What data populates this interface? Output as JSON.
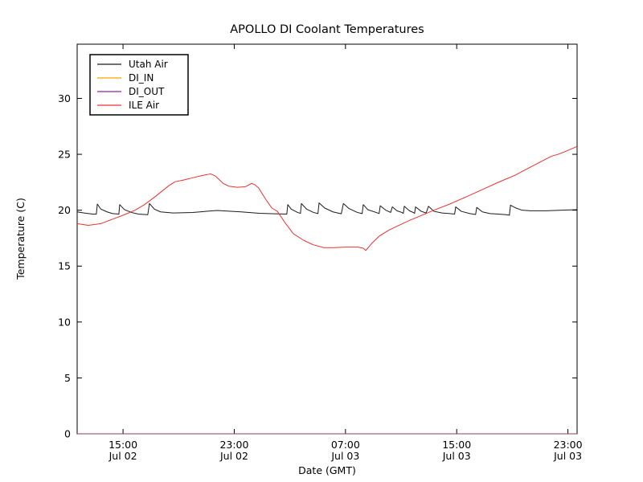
{
  "figure": {
    "background": "#ffffff",
    "frame_color": "#000000"
  },
  "chart_data": {
    "type": "line",
    "title": "APOLLO DI Coolant Temperatures",
    "xlabel": "Date (GMT)",
    "ylabel": "Temperature (C)",
    "x_unit": "hours since Jul 02 00:00 GMT",
    "xlim": [
      11.7,
      47.66
    ],
    "ylim": [
      0,
      34.85
    ],
    "yticks": [
      0,
      5,
      10,
      15,
      20,
      25,
      30
    ],
    "xticks": [
      {
        "t": 15,
        "time": "15:00",
        "date": "Jul 02"
      },
      {
        "t": 23,
        "time": "23:00",
        "date": "Jul 02"
      },
      {
        "t": 31,
        "time": "07:00",
        "date": "Jul 03"
      },
      {
        "t": 39,
        "time": "15:00",
        "date": "Jul 03"
      },
      {
        "t": 47,
        "time": "23:00",
        "date": "Jul 03"
      }
    ],
    "grid": false,
    "legend_position": "upper-left",
    "legend_entries": [
      "Utah Air",
      "DI_IN",
      "DI_OUT",
      "ILE Air"
    ],
    "series": [
      {
        "name": "Utah Air",
        "color": "#1a1a1a",
        "opacity": 1,
        "points": [
          [
            11.7,
            19.85
          ],
          [
            12.2,
            19.75
          ],
          [
            12.8,
            19.65
          ],
          [
            13.08,
            19.65
          ],
          [
            13.15,
            20.55
          ],
          [
            13.4,
            20.1
          ],
          [
            13.85,
            19.85
          ],
          [
            14.25,
            19.7
          ],
          [
            14.7,
            19.65
          ],
          [
            14.76,
            20.5
          ],
          [
            15.1,
            20.05
          ],
          [
            15.6,
            19.8
          ],
          [
            16.1,
            19.65
          ],
          [
            16.78,
            19.6
          ],
          [
            16.9,
            20.6
          ],
          [
            17.25,
            20.1
          ],
          [
            17.7,
            19.85
          ],
          [
            18.6,
            19.75
          ],
          [
            20.0,
            19.8
          ],
          [
            21.0,
            19.9
          ],
          [
            21.76,
            19.98
          ],
          [
            22.5,
            19.92
          ],
          [
            23.5,
            19.85
          ],
          [
            24.8,
            19.72
          ],
          [
            25.9,
            19.68
          ],
          [
            26.78,
            19.65
          ],
          [
            26.85,
            20.5
          ],
          [
            27.1,
            20.1
          ],
          [
            27.55,
            19.8
          ],
          [
            27.76,
            19.72
          ],
          [
            27.83,
            20.6
          ],
          [
            28.2,
            20.1
          ],
          [
            28.7,
            19.8
          ],
          [
            29.02,
            19.7
          ],
          [
            29.1,
            20.65
          ],
          [
            29.5,
            20.2
          ],
          [
            30.1,
            19.85
          ],
          [
            30.7,
            19.68
          ],
          [
            30.85,
            20.6
          ],
          [
            31.25,
            20.15
          ],
          [
            31.85,
            19.8
          ],
          [
            32.2,
            19.7
          ],
          [
            32.28,
            20.5
          ],
          [
            32.6,
            20.05
          ],
          [
            33.2,
            19.8
          ],
          [
            33.42,
            19.7
          ],
          [
            33.5,
            20.4
          ],
          [
            33.9,
            20.0
          ],
          [
            34.25,
            19.8
          ],
          [
            34.37,
            20.3
          ],
          [
            34.7,
            19.95
          ],
          [
            35.05,
            19.8
          ],
          [
            35.16,
            19.72
          ],
          [
            35.23,
            20.35
          ],
          [
            35.6,
            19.95
          ],
          [
            35.9,
            19.78
          ],
          [
            35.97,
            19.72
          ],
          [
            36.04,
            20.3
          ],
          [
            36.45,
            19.9
          ],
          [
            36.8,
            19.75
          ],
          [
            36.97,
            20.35
          ],
          [
            37.36,
            19.9
          ],
          [
            37.95,
            19.75
          ],
          [
            38.5,
            19.7
          ],
          [
            38.85,
            19.65
          ],
          [
            38.93,
            20.3
          ],
          [
            39.33,
            19.9
          ],
          [
            39.95,
            19.7
          ],
          [
            40.36,
            19.62
          ],
          [
            40.44,
            20.25
          ],
          [
            40.85,
            19.85
          ],
          [
            41.4,
            19.7
          ],
          [
            42.0,
            19.65
          ],
          [
            42.55,
            19.6
          ],
          [
            42.79,
            19.55
          ],
          [
            42.87,
            20.45
          ],
          [
            43.25,
            20.2
          ],
          [
            43.7,
            20.0
          ],
          [
            44.3,
            19.95
          ],
          [
            45.45,
            19.95
          ],
          [
            46.6,
            20.0
          ],
          [
            47.66,
            20.05
          ]
        ]
      },
      {
        "name": "DI_IN",
        "color": "#ffa500",
        "opacity": 0.55,
        "points": [
          [
            11.7,
            0
          ],
          [
            47.66,
            0
          ]
        ]
      },
      {
        "name": "DI_OUT",
        "color": "#8b2aa0",
        "opacity": 0.55,
        "points": [
          [
            11.7,
            0
          ],
          [
            47.66,
            0
          ]
        ]
      },
      {
        "name": "ILE Air",
        "color": "#ee3030",
        "opacity": 1,
        "points": [
          [
            11.7,
            18.8
          ],
          [
            12.5,
            18.65
          ],
          [
            13.4,
            18.8
          ],
          [
            14.25,
            19.2
          ],
          [
            15.1,
            19.6
          ],
          [
            15.86,
            20.0
          ],
          [
            16.55,
            20.5
          ],
          [
            17.4,
            21.3
          ],
          [
            18.3,
            22.2
          ],
          [
            18.75,
            22.55
          ],
          [
            19.35,
            22.7
          ],
          [
            20.0,
            22.9
          ],
          [
            20.7,
            23.1
          ],
          [
            21.3,
            23.25
          ],
          [
            21.65,
            23.05
          ],
          [
            22.2,
            22.4
          ],
          [
            22.6,
            22.15
          ],
          [
            23.2,
            22.05
          ],
          [
            23.8,
            22.1
          ],
          [
            24.25,
            22.4
          ],
          [
            24.45,
            22.3
          ],
          [
            24.75,
            22.0
          ],
          [
            25.25,
            21.0
          ],
          [
            25.7,
            20.2
          ],
          [
            26.1,
            19.9
          ],
          [
            26.7,
            18.8
          ],
          [
            27.25,
            17.9
          ],
          [
            28.0,
            17.3
          ],
          [
            28.7,
            16.9
          ],
          [
            29.45,
            16.65
          ],
          [
            30.15,
            16.65
          ],
          [
            31.0,
            16.7
          ],
          [
            31.9,
            16.7
          ],
          [
            32.28,
            16.6
          ],
          [
            32.46,
            16.4
          ],
          [
            32.87,
            17.0
          ],
          [
            33.45,
            17.7
          ],
          [
            34.1,
            18.2
          ],
          [
            34.76,
            18.6
          ],
          [
            35.63,
            19.1
          ],
          [
            36.5,
            19.55
          ],
          [
            37.36,
            20.0
          ],
          [
            38.5,
            20.55
          ],
          [
            39.7,
            21.2
          ],
          [
            40.85,
            21.85
          ],
          [
            42.0,
            22.5
          ],
          [
            43.15,
            23.1
          ],
          [
            44.3,
            23.85
          ],
          [
            45.45,
            24.6
          ],
          [
            45.86,
            24.85
          ],
          [
            46.3,
            25.0
          ],
          [
            46.9,
            25.3
          ],
          [
            47.66,
            25.7
          ]
        ]
      }
    ]
  }
}
